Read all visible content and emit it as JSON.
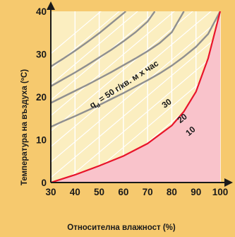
{
  "colors": {
    "background": "#f6c96e",
    "plot_area": "#fbeec0",
    "pink_region": "#f9c3cb",
    "red_curve": "#e8142a",
    "grid_white": "#ffffff",
    "grid_gray": "#8f8f8f",
    "axis": "#1a1a1a",
    "text": "#1a1a1a"
  },
  "chart_data": {
    "type": "line",
    "title": "",
    "xlabel": "Относителна влажност (%)",
    "ylabel": "Температура на въздуха (ºС)",
    "xlim": [
      30,
      100
    ],
    "ylim": [
      0,
      40
    ],
    "x_ticks": [
      "30",
      "40",
      "50",
      "60",
      "70",
      "80",
      "90",
      "100"
    ],
    "y_ticks": [
      "0",
      "10",
      "20",
      "30",
      "40"
    ],
    "x_tick_values": [
      30,
      40,
      50,
      60,
      70,
      80,
      90,
      100
    ],
    "y_tick_values": [
      0,
      10,
      20,
      30,
      40
    ],
    "grid": true,
    "series": [
      {
        "name": "",
        "color": "#e8142a",
        "x": [
          30,
          40,
          50,
          60,
          70,
          80,
          85,
          90,
          95,
          100
        ],
        "y": [
          0,
          1.8,
          3.9,
          6.2,
          9.1,
          13.3,
          16.6,
          21.2,
          29.0,
          40.0
        ]
      },
      {
        "name": "10",
        "color": "#8f8f8f",
        "x": [
          100,
          95,
          90,
          85,
          80,
          75,
          70,
          65,
          60,
          55,
          50,
          45,
          40,
          35,
          30
        ],
        "y": [
          40,
          34.7,
          31.7,
          29.4,
          27.3,
          25.5,
          23.9,
          22.4,
          20.9,
          19.5,
          18.1,
          16.8,
          15.5,
          14.3,
          13.0
        ]
      },
      {
        "name": "20",
        "color": "#8f8f8f",
        "x": [
          85,
          80,
          75,
          70,
          65,
          60,
          55,
          50,
          45,
          40,
          35,
          30
        ],
        "y": [
          40,
          35.1,
          32.6,
          30.7,
          29.0,
          27.4,
          25.8,
          24.3,
          22.8,
          21.4,
          20.0,
          18.6
        ]
      },
      {
        "name": "30",
        "color": "#8f8f8f",
        "x": [
          73,
          70,
          65,
          60,
          55,
          50,
          45,
          40,
          35,
          30
        ],
        "y": [
          40,
          37.6,
          35.1,
          33.0,
          31.0,
          29.2,
          27.4,
          25.7,
          24.1,
          22.5
        ]
      },
      {
        "name": "q_d = 50 г/кв. м х час",
        "color": "#8f8f8f",
        "x": [
          61,
          55,
          50,
          45,
          40,
          35,
          30
        ],
        "y": [
          40,
          37.2,
          34.9,
          32.8,
          30.8,
          28.9,
          27.1
        ]
      }
    ],
    "annotations": [
      {
        "text": "10",
        "x": 87,
        "y": 10.8,
        "angle": -40
      },
      {
        "text": "20",
        "x": 83.5,
        "y": 13.8,
        "angle": -38
      },
      {
        "text": "30",
        "x": 77,
        "y": 17.3,
        "angle": -36
      },
      {
        "text": "q",
        "sub": "d",
        "rest": " = 50 г/кв. м х час",
        "x": 47,
        "y": 17.3,
        "angle": -33
      }
    ]
  }
}
